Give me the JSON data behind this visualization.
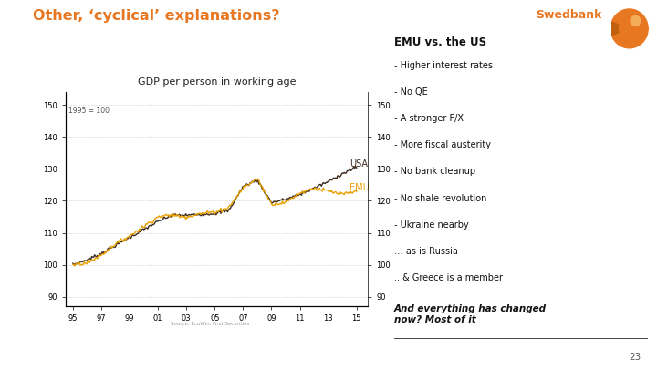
{
  "title": "Other, ‘cyclical’ explanations?",
  "title_color": "#E87722",
  "background_color": "#FFFFFF",
  "chart_title": "GDP per person in working age",
  "chart_note": "1995 = 100",
  "source_text": "Source: EcoWin, First Securities",
  "x_ticks": [
    "95",
    "97",
    "99",
    "01",
    "03",
    "05",
    "07",
    "09",
    "11",
    "13",
    "15"
  ],
  "x_tick_positions": [
    1995,
    1997,
    1999,
    2001,
    2003,
    2005,
    2007,
    2009,
    2011,
    2013,
    2015
  ],
  "y_ticks": [
    90,
    100,
    110,
    120,
    130,
    140,
    150
  ],
  "ylim": [
    87,
    154
  ],
  "emu_vs_us_title": "EMU vs. the US",
  "emu_vs_us_bullets": [
    "- Higher interest rates",
    "- No QE",
    "- A stronger F/X",
    "- More fiscal austerity",
    "- No bank cleanup",
    "- No shale revolution",
    "- Ukraine nearby",
    "… as is Russia",
    ".. & Greece is a member"
  ],
  "italic_text": "And everything has changed\nnow? Most of it",
  "usa_color": "#3D2B1F",
  "emu_color": "#E8A000",
  "swedbank_text_color": "#E87722",
  "page_number": "23",
  "usa_knots_x": [
    1995,
    1996,
    1997,
    1998,
    1999,
    2000,
    2001,
    2002,
    2003,
    2004,
    2005,
    2006,
    2007,
    2008,
    2009,
    2010,
    2011,
    2012,
    2013,
    2014,
    2015
  ],
  "usa_knots_y": [
    100.0,
    101.5,
    103.5,
    106.0,
    108.5,
    111.0,
    113.5,
    115.5,
    115.5,
    115.8,
    116.0,
    117.0,
    124.5,
    126.5,
    119.5,
    120.5,
    122.0,
    124.0,
    126.0,
    128.5,
    130.5
  ],
  "emu_knots_x": [
    1995,
    1996,
    1997,
    1998,
    1999,
    2000,
    2001,
    2002,
    2003,
    2004,
    2005,
    2006,
    2007,
    2008,
    2009,
    2010,
    2011,
    2012,
    2013,
    2014,
    2015
  ],
  "emu_knots_y": [
    100.0,
    100.5,
    103.0,
    106.5,
    109.0,
    112.0,
    115.0,
    115.5,
    115.0,
    116.0,
    116.5,
    118.0,
    124.0,
    127.0,
    119.0,
    119.5,
    122.5,
    124.0,
    123.0,
    122.0,
    123.0
  ]
}
